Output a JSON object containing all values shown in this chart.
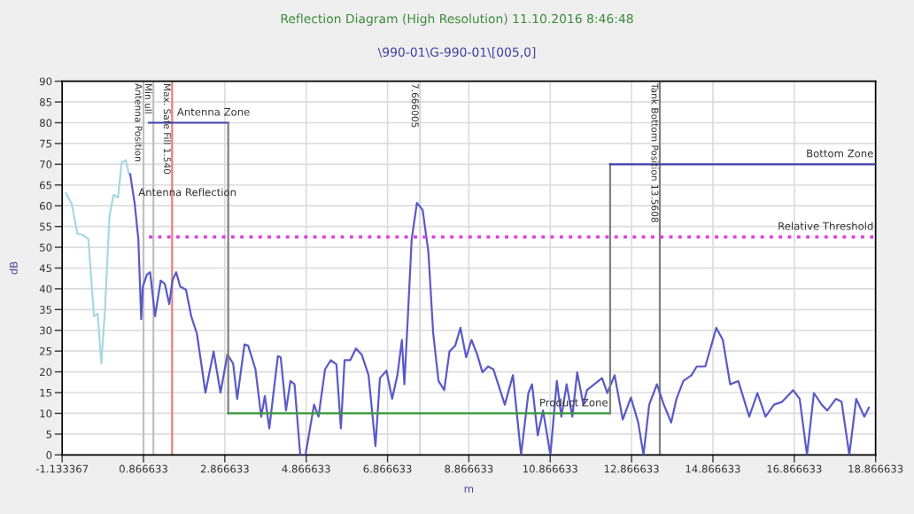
{
  "chart_data": {
    "type": "line",
    "title": "Reflection Diagram (High Resolution) 11.10.2016 8:46:48",
    "subtitle": "\\990-01\\G-990-01\\[005,0]",
    "xlabel": "m",
    "ylabel": "dB",
    "xlim": [
      -1.133367,
      18.866633
    ],
    "xticks": [
      -1.133367,
      0.866633,
      2.866633,
      4.866633,
      6.866633,
      8.866633,
      10.866633,
      12.866633,
      14.866633,
      16.866633,
      18.866633
    ],
    "ylim": [
      0,
      90
    ],
    "yticks": [
      0,
      5,
      10,
      15,
      20,
      25,
      30,
      35,
      40,
      45,
      50,
      55,
      60,
      65,
      70,
      75,
      80,
      85,
      90
    ],
    "grid": true,
    "legend": false,
    "series": [
      {
        "color": "#a8d8e0",
        "x": [
          -1.04,
          -0.9,
          -0.76,
          -0.63,
          -0.49,
          -0.35,
          -0.26,
          -0.17,
          -0.08,
          0.03,
          0.13,
          0.24,
          0.33,
          0.43,
          0.51,
          0.54
        ],
        "values": [
          63,
          60.5,
          53.3,
          53,
          52,
          33.4,
          34,
          22,
          35,
          57.6,
          62.6,
          62,
          70.4,
          71,
          67.6,
          67.6
        ]
      },
      {
        "color": "#5a5ac8",
        "x": [
          0.54,
          0.65,
          0.74,
          0.81,
          0.85,
          0.95,
          1.03,
          1.15,
          1.29,
          1.39,
          1.5,
          1.58,
          1.67,
          1.77,
          1.91,
          2.04,
          2.18,
          2.39,
          2.59,
          2.76,
          2.93,
          3.07,
          3.17,
          3.35,
          3.44,
          3.62,
          3.76,
          3.85,
          3.96,
          4.17,
          4.24,
          4.37,
          4.48,
          4.58,
          4.72,
          4.85,
          5.06,
          5.17,
          5.33,
          5.47,
          5.61,
          5.72,
          5.81,
          5.95,
          6.09,
          6.23,
          6.4,
          6.57,
          6.68,
          6.84,
          6.98,
          7.11,
          7.22,
          7.28,
          7.36,
          7.46,
          7.59,
          7.73,
          7.87,
          7.99,
          8.12,
          8.26,
          8.39,
          8.53,
          8.66,
          8.8,
          8.93,
          9.07,
          9.2,
          9.34,
          9.47,
          9.75,
          9.95,
          10.15,
          10.33,
          10.42,
          10.56,
          10.69,
          10.87,
          11.03,
          11.14,
          11.27,
          11.41,
          11.53,
          11.68,
          11.77,
          11.95,
          12.14,
          12.27,
          12.45,
          12.65,
          12.85,
          13.03,
          13.16,
          13.3,
          13.49,
          13.66,
          13.84,
          13.97,
          14.14,
          14.34,
          14.47,
          14.68,
          14.95,
          15.11,
          15.29,
          15.49,
          15.76,
          15.96,
          16.16,
          16.37,
          16.57,
          16.84,
          17.0,
          17.18,
          17.35,
          17.54,
          17.68,
          17.89,
          18.03,
          18.22,
          18.39,
          18.59,
          18.7
        ],
        "values": [
          67.6,
          60.5,
          52,
          32.7,
          40.5,
          43.4,
          44,
          33.4,
          42,
          41.2,
          36.3,
          42,
          44,
          40.5,
          39.8,
          33.4,
          29.2,
          15,
          24.9,
          15,
          24.2,
          22,
          13.5,
          26.6,
          26.3,
          20.6,
          9.2,
          14.2,
          6.4,
          23.8,
          23.5,
          10.7,
          17.8,
          17,
          0,
          0,
          12.1,
          9.2,
          20.6,
          22.8,
          21.8,
          6.4,
          22.8,
          22.8,
          25.6,
          24.2,
          19.2,
          2.1,
          18.5,
          20.3,
          13.5,
          19.2,
          27.7,
          17,
          32,
          51.9,
          60.7,
          59,
          49,
          29.2,
          17.8,
          15.6,
          24.9,
          26.3,
          30.6,
          23.5,
          27.7,
          24.2,
          19.9,
          21.3,
          20.6,
          12.1,
          19.2,
          0,
          14.9,
          17,
          4.7,
          10.7,
          0,
          17.8,
          9.2,
          17,
          9.2,
          19.9,
          12.1,
          15.6,
          17,
          18.5,
          14.9,
          19.2,
          8.5,
          13.8,
          7.8,
          0,
          12.1,
          17,
          12.1,
          7.8,
          13.5,
          17.8,
          19.2,
          21.3,
          21.3,
          30.6,
          27.7,
          17,
          17.8,
          9.2,
          14.9,
          9.2,
          12.1,
          12.8,
          15.6,
          13.5,
          0,
          14.9,
          12.1,
          10.7,
          13.5,
          12.8,
          0,
          13.5,
          9.2,
          11.4
        ]
      },
      {
        "name": "Antenna Zone",
        "color": "#4040b0",
        "x": [
          1.0,
          2.95
        ],
        "values": [
          80,
          80
        ]
      },
      {
        "color": "#808080",
        "x": [
          2.95,
          2.95
        ],
        "values": [
          80,
          10
        ]
      },
      {
        "name": "Product Zone",
        "color": "#3a9a3a",
        "x": [
          2.95,
          12.34
        ],
        "values": [
          10,
          10
        ]
      },
      {
        "color": "#808080",
        "x": [
          12.34,
          12.34
        ],
        "values": [
          10,
          70
        ]
      },
      {
        "name": "Bottom Zone",
        "color": "#4040b0",
        "x": [
          12.34,
          18.866633
        ],
        "values": [
          70,
          70
        ]
      },
      {
        "name": "Relative Threshold",
        "color": "#e040e0",
        "line_style": "dotted",
        "x": [
          1.0,
          18.866633
        ],
        "values": [
          52.5,
          52.5
        ]
      }
    ],
    "ref_lines": [
      {
        "axis": "x",
        "value": 0.866633,
        "label": "Antenna Position",
        "color": "#c0c0c0"
      },
      {
        "axis": "x",
        "value": 1.11,
        "label": "Min ull",
        "color": "#c0c0c0"
      },
      {
        "axis": "x",
        "value": 1.57,
        "label": "Max. Safe Fill 1.540",
        "color": "#e08080"
      },
      {
        "axis": "x",
        "value": 7.666005,
        "label": "7.666005",
        "color": "#d8d8d8"
      },
      {
        "axis": "x",
        "value": 13.5608,
        "label": "Tank Bottom Position 13.5608",
        "color": "#808080"
      }
    ],
    "annotations": [
      {
        "text": "Antenna Reflection",
        "x": 0.74,
        "y": 69
      }
    ]
  }
}
